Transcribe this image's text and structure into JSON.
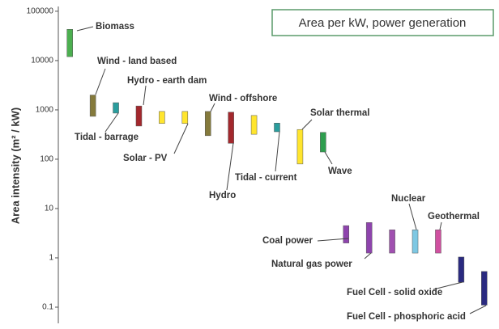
{
  "chart_data": {
    "type": "floating-bar",
    "title": "Area per kW, power generation",
    "y_label": "Area intensity (m² / kW)",
    "log_scale": true,
    "categories": [
      "Biomass",
      "Wind - land based",
      "Tidal - barrage",
      "Hydro - earth dam",
      "Solar - PV",
      null,
      "Wind - offshore",
      "Hydro",
      null,
      "Tidal - current",
      "Solar thermal",
      "Wave",
      "Coal power",
      "Natural gas power",
      null,
      "Nuclear",
      "Geothermal",
      "Fuel Cell - solid oxide",
      "Fuel Cell - phosphoric acid"
    ],
    "values": [
      [
        12000,
        43000
      ],
      [
        740,
        2000
      ],
      [
        860,
        1400
      ],
      [
        470,
        1200
      ],
      [
        530,
        930
      ],
      [
        530,
        930
      ],
      [
        300,
        930
      ],
      [
        210,
        900
      ],
      [
        320,
        770
      ],
      [
        360,
        540
      ],
      [
        80,
        400
      ],
      [
        140,
        350
      ],
      [
        2,
        4.5
      ],
      [
        1.25,
        5.2
      ],
      [
        1.25,
        3.7
      ],
      [
        1.25,
        3.7
      ],
      [
        1.25,
        3.7
      ],
      [
        0.32,
        1.04
      ],
      [
        0.11,
        0.53
      ]
    ],
    "colors": [
      "#4caf50",
      "#857a3c",
      "#2a9d9d",
      "#a3282d",
      "#ffe52e",
      "#ffe52e",
      "#857a3c",
      "#a3282d",
      "#ffe52e",
      "#2a9d9d",
      "#ffe52e",
      "#2e9e4e",
      "#8e44ad",
      "#8e44ad",
      "#a050b0",
      "#7ec8e3",
      "#d050a0",
      "#2a2a80",
      "#2a2a80"
    ],
    "ylim": [
      0.047,
      125000
    ],
    "yticks": [
      0.1,
      1,
      10,
      100,
      1000,
      10000,
      100000
    ]
  }
}
